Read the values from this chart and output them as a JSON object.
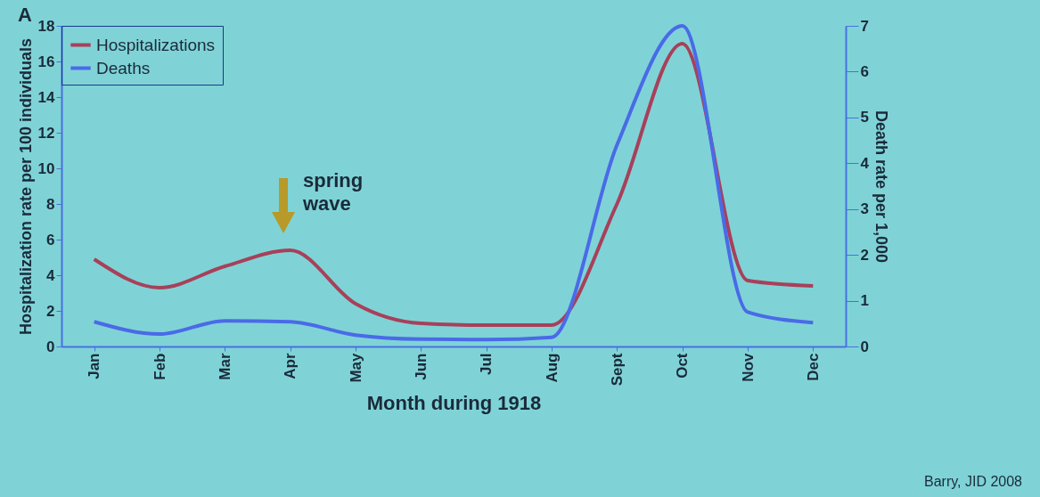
{
  "chart_data": {
    "type": "line",
    "xlabel": "Month during 1918",
    "ylabel": "Hospitalization rate per 100 individuals",
    "y2label": "Death rate per 1,000",
    "categories": [
      "Jan",
      "Feb",
      "Mar",
      "Apr",
      "May",
      "Jun",
      "Jul",
      "Aug",
      "Sept",
      "Oct",
      "Nov",
      "Dec"
    ],
    "series": [
      {
        "name": "Hospitalizations",
        "color": "#a8405a",
        "values": [
          4.9,
          3.3,
          4.5,
          5.4,
          2.4,
          1.3,
          1.2,
          1.2,
          8.0,
          17,
          3.7,
          3.4
        ]
      },
      {
        "name": "Deaths",
        "color": "#4a6ae8",
        "axis": "y2",
        "values": [
          0.54,
          0.27,
          0.56,
          0.54,
          0.25,
          0.16,
          0.15,
          0.2,
          4.4,
          7.0,
          0.75,
          0.52
        ]
      }
    ],
    "ylim": [
      0,
      18
    ],
    "yticks": [
      0,
      2,
      4,
      6,
      8,
      10,
      12,
      14,
      16,
      18
    ],
    "y2lim": [
      0,
      7
    ],
    "y2ticks": [
      0,
      1,
      2,
      3,
      4,
      5,
      6,
      7
    ],
    "legend": "top left",
    "grid": false,
    "marker": "none",
    "line_style": "solid",
    "annotations": [
      "A",
      "spring wave",
      "Barry, JID 2008"
    ]
  }
}
